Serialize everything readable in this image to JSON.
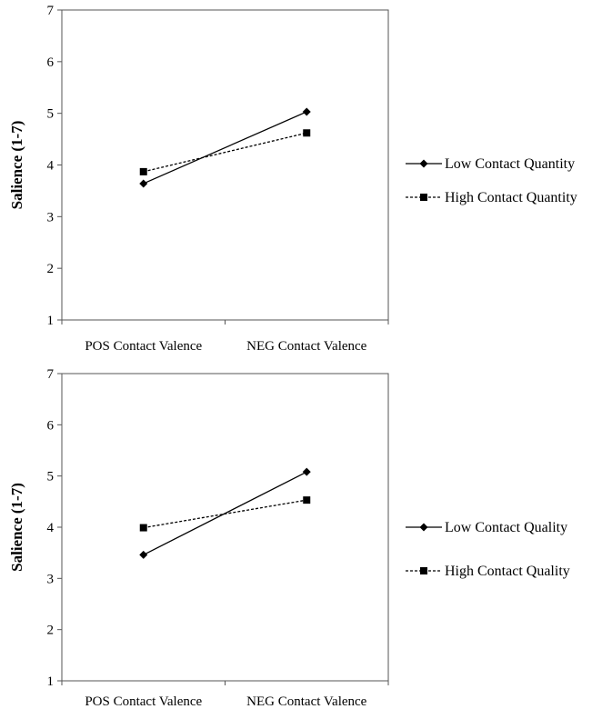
{
  "chart_data": [
    {
      "type": "line",
      "title": "",
      "xlabel": "",
      "ylabel": "Salience (1-7)",
      "categories": [
        "POS Contact Valence",
        "NEG Contact Valence"
      ],
      "ylim": [
        1,
        7
      ],
      "yticks": [
        "1",
        "2",
        "3",
        "4",
        "5",
        "6",
        "7"
      ],
      "grid": false,
      "legend_position": "right",
      "series": [
        {
          "name": "Low Contact Quantity",
          "values": [
            3.64,
            5.03
          ],
          "marker": "diamond",
          "line": "solid"
        },
        {
          "name": "High Contact Quantity",
          "values": [
            3.87,
            4.62
          ],
          "marker": "square",
          "line": "dashed"
        }
      ]
    },
    {
      "type": "line",
      "title": "",
      "xlabel": "",
      "ylabel": "Salience (1-7)",
      "categories": [
        "POS Contact Valence",
        "NEG Contact Valence"
      ],
      "ylim": [
        1,
        7
      ],
      "yticks": [
        "1",
        "2",
        "3",
        "4",
        "5",
        "6",
        "7"
      ],
      "grid": false,
      "legend_position": "right",
      "series": [
        {
          "name": "Low Contact Quality",
          "values": [
            3.46,
            5.08
          ],
          "marker": "diamond",
          "line": "solid"
        },
        {
          "name": "High Contact Quality",
          "values": [
            3.99,
            4.53
          ],
          "marker": "square",
          "line": "dashed"
        }
      ]
    }
  ]
}
